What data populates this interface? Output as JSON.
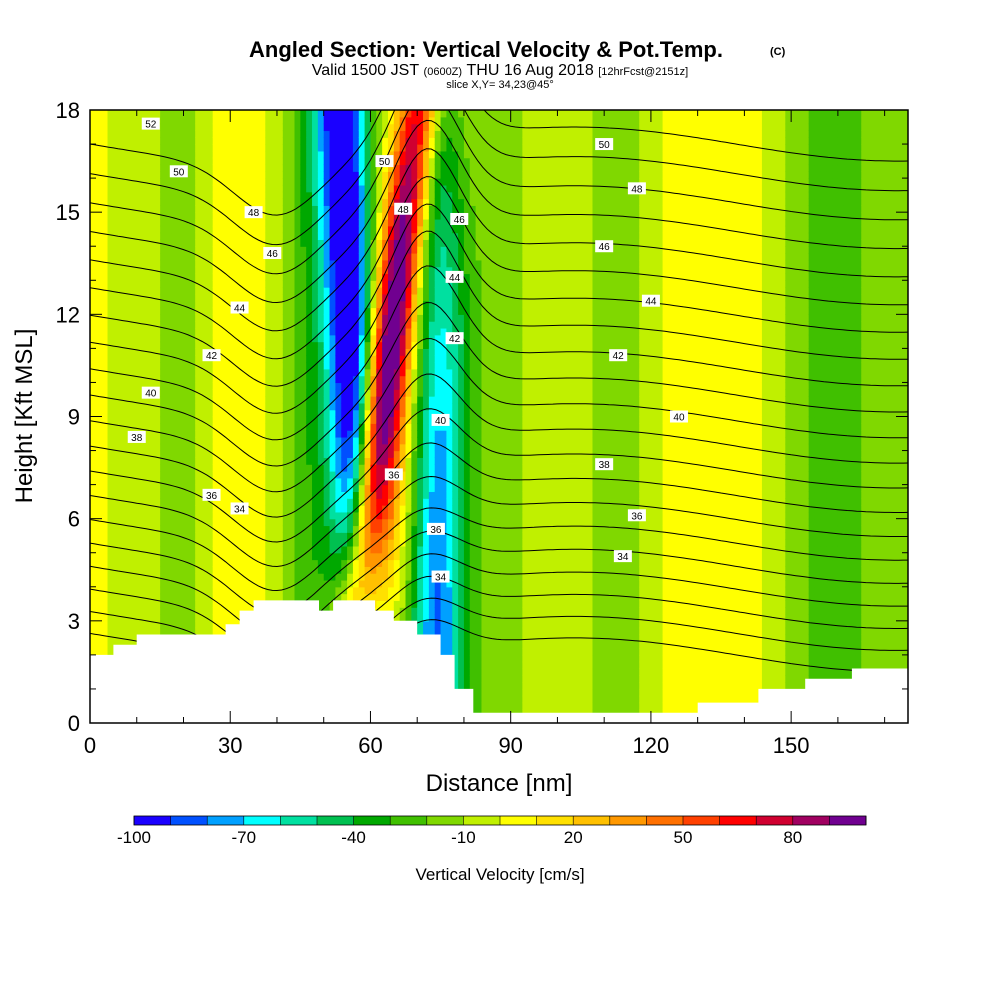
{
  "chart_data": {
    "type": "heatmap",
    "title": "Angled Section: Vertical Velocity & Pot.Temp.",
    "title_suffix": "(C)",
    "subtitle": {
      "valid_prefix": "Valid 1500 JST",
      "valid_utc": "(0600Z)",
      "valid_date": "THU 16 Aug 2018",
      "forecast": "[12hrFcst@2151z]"
    },
    "slice": "slice X,Y= 34,23@45°",
    "xlabel": "Distance [nm]",
    "ylabel": "Height [Kft MSL]",
    "xlim": [
      0,
      175
    ],
    "ylim": [
      0,
      18
    ],
    "x_ticks": [
      "0",
      "30",
      "60",
      "90",
      "120",
      "150"
    ],
    "y_ticks": [
      "0",
      "3",
      "6",
      "9",
      "12",
      "15",
      "18"
    ],
    "colorbar": {
      "label": "Vertical Velocity [cm/s]",
      "ticks": [
        "-100",
        "-70",
        "-40",
        "-10",
        "20",
        "50",
        "80"
      ],
      "colors": [
        "#1a00ff",
        "#0050ff",
        "#00a0ff",
        "#00ffff",
        "#00e0a0",
        "#00c050",
        "#00a800",
        "#40c000",
        "#80d800",
        "#c0f000",
        "#ffff00",
        "#ffe000",
        "#ffc000",
        "#ff9800",
        "#ff7000",
        "#ff4000",
        "#ff0000",
        "#d00030",
        "#a00060",
        "#700090"
      ]
    },
    "field_levels": [
      -100,
      -90,
      -80,
      -70,
      -60,
      -50,
      -40,
      -30,
      -20,
      -10,
      0,
      10,
      20,
      30,
      40,
      50,
      60,
      70,
      80,
      90
    ],
    "terrain": [
      [
        0,
        2
      ],
      [
        5,
        2
      ],
      [
        5,
        2.3
      ],
      [
        10,
        2.3
      ],
      [
        10,
        2.6
      ],
      [
        29,
        2.6
      ],
      [
        29,
        2.9
      ],
      [
        32,
        2.9
      ],
      [
        32,
        3.3
      ],
      [
        35,
        3.3
      ],
      [
        35,
        3.6
      ],
      [
        49,
        3.6
      ],
      [
        49,
        3.3
      ],
      [
        52,
        3.3
      ],
      [
        52,
        3.6
      ],
      [
        61,
        3.6
      ],
      [
        61,
        3.3
      ],
      [
        65,
        3.3
      ],
      [
        65,
        3
      ],
      [
        70,
        3
      ],
      [
        70,
        2.6
      ],
      [
        75,
        2.6
      ],
      [
        75,
        2
      ],
      [
        78,
        2
      ],
      [
        78,
        1
      ],
      [
        82,
        1
      ],
      [
        82,
        0.3
      ],
      [
        130,
        0.3
      ],
      [
        130,
        0.6
      ],
      [
        143,
        0.6
      ],
      [
        143,
        1
      ],
      [
        153,
        1
      ],
      [
        153,
        1.3
      ],
      [
        163,
        1.3
      ],
      [
        163,
        1.6
      ],
      [
        175,
        1.6
      ]
    ],
    "theta_lines": [
      32,
      33,
      34,
      35,
      36,
      37,
      38,
      39,
      40,
      41,
      42,
      43,
      44,
      45,
      46,
      47,
      48,
      49,
      50,
      51,
      52
    ],
    "contour_labels": [
      {
        "text": "52",
        "x": 13,
        "y": 17.6
      },
      {
        "text": "50",
        "x": 19,
        "y": 16.2
      },
      {
        "text": "48",
        "x": 35,
        "y": 15.0
      },
      {
        "text": "46",
        "x": 39,
        "y": 13.8
      },
      {
        "text": "44",
        "x": 32,
        "y": 12.2
      },
      {
        "text": "42",
        "x": 26,
        "y": 10.8
      },
      {
        "text": "40",
        "x": 13,
        "y": 9.7
      },
      {
        "text": "38",
        "x": 10,
        "y": 8.4
      },
      {
        "text": "36",
        "x": 26,
        "y": 6.7
      },
      {
        "text": "34",
        "x": 32,
        "y": 6.3
      },
      {
        "text": "50",
        "x": 63,
        "y": 16.5
      },
      {
        "text": "48",
        "x": 67,
        "y": 15.1
      },
      {
        "text": "46",
        "x": 79,
        "y": 14.8
      },
      {
        "text": "44",
        "x": 78,
        "y": 13.1
      },
      {
        "text": "42",
        "x": 78,
        "y": 11.3
      },
      {
        "text": "40",
        "x": 75,
        "y": 8.9
      },
      {
        "text": "36",
        "x": 65,
        "y": 7.3
      },
      {
        "text": "36",
        "x": 74,
        "y": 5.7
      },
      {
        "text": "34",
        "x": 75,
        "y": 4.3
      },
      {
        "text": "50",
        "x": 110,
        "y": 17.0
      },
      {
        "text": "48",
        "x": 117,
        "y": 15.7
      },
      {
        "text": "46",
        "x": 110,
        "y": 14.0
      },
      {
        "text": "44",
        "x": 120,
        "y": 12.4
      },
      {
        "text": "42",
        "x": 113,
        "y": 10.8
      },
      {
        "text": "40",
        "x": 126,
        "y": 9.0
      },
      {
        "text": "38",
        "x": 110,
        "y": 7.6
      },
      {
        "text": "36",
        "x": 117,
        "y": 6.1
      },
      {
        "text": "34",
        "x": 114,
        "y": 4.9
      }
    ]
  }
}
